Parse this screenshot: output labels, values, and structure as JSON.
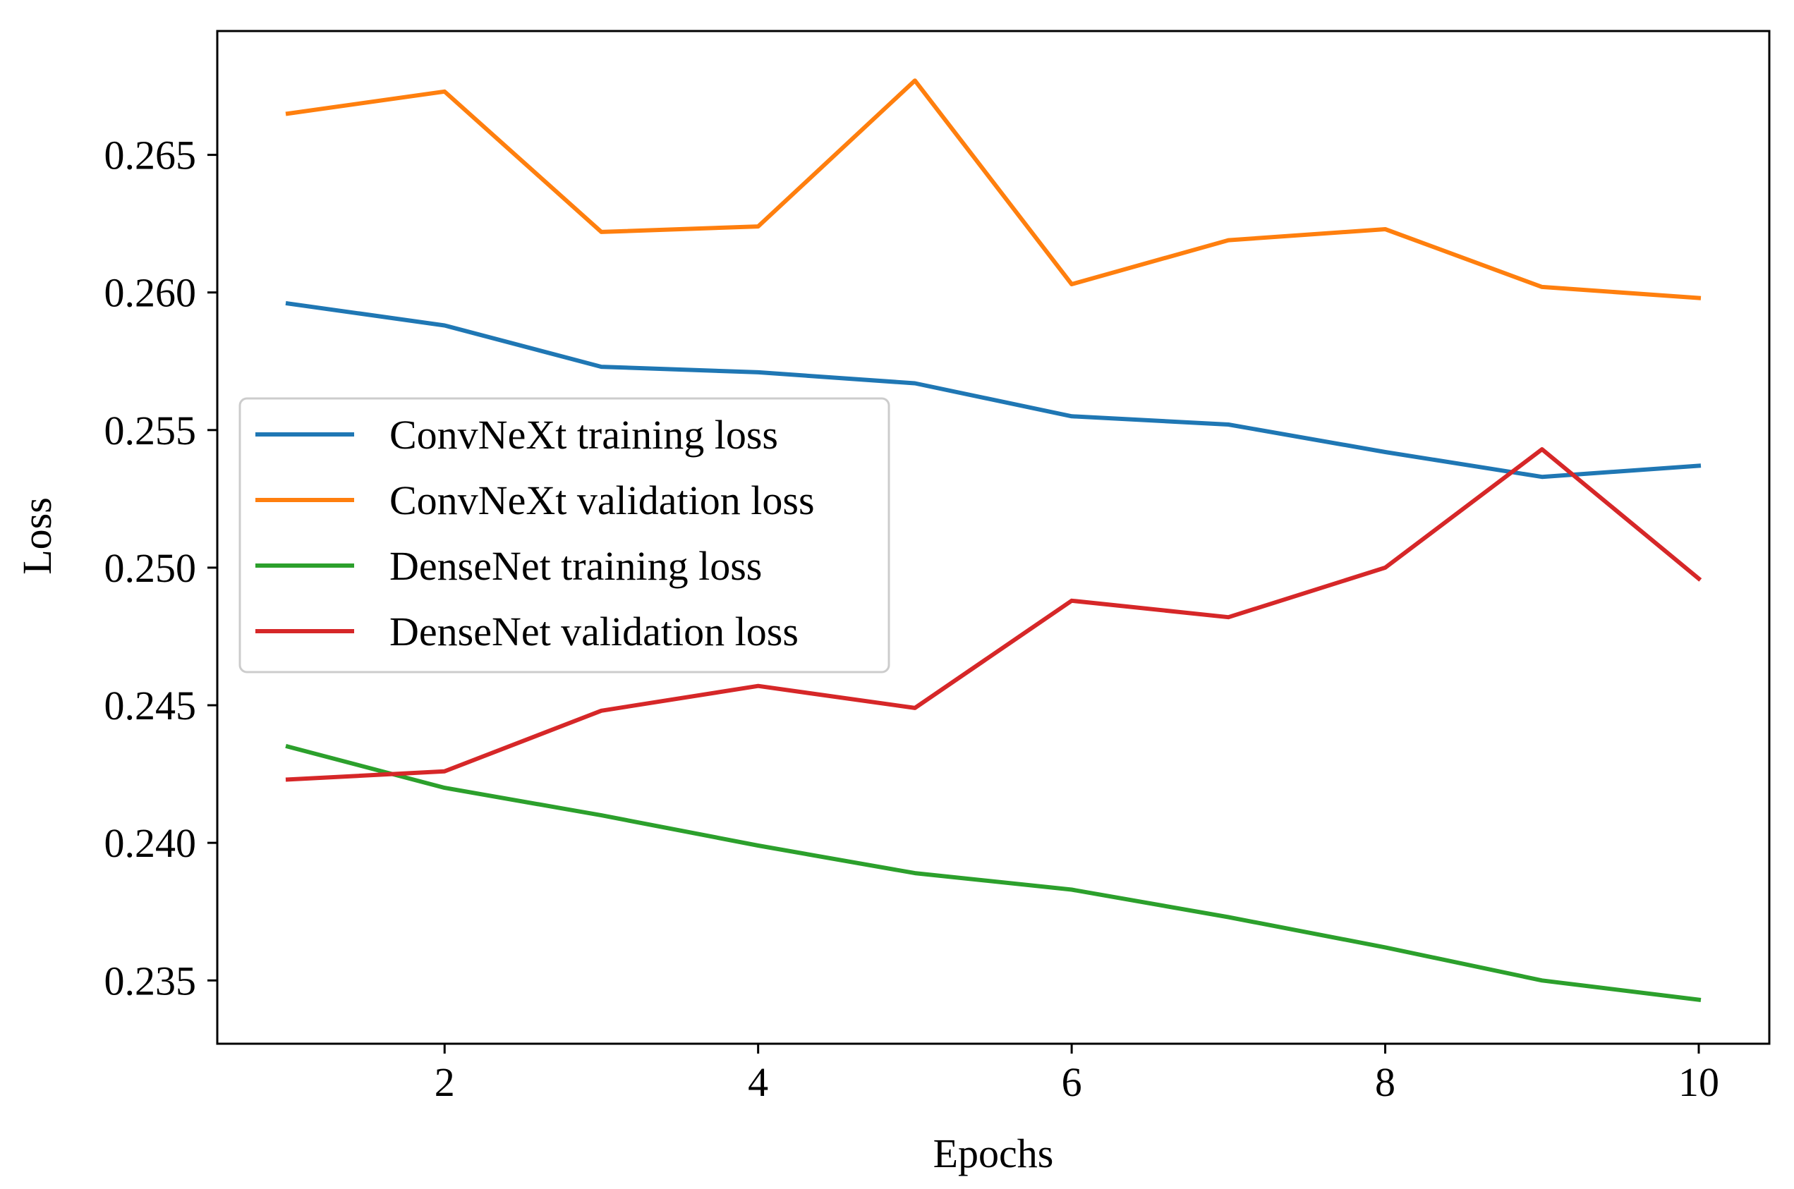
{
  "chart_data": {
    "type": "line",
    "title": "",
    "xlabel": "Epochs",
    "ylabel": "Loss",
    "x": [
      1,
      2,
      3,
      4,
      5,
      6,
      7,
      8,
      9,
      10
    ],
    "xlim": [
      0.55,
      10.45
    ],
    "ylim": [
      0.2327,
      0.2695
    ],
    "xticks": [
      2,
      4,
      6,
      8,
      10
    ],
    "xtick_labels": [
      "2",
      "4",
      "6",
      "8",
      "10"
    ],
    "yticks": [
      0.235,
      0.24,
      0.245,
      0.25,
      0.255,
      0.26,
      0.265
    ],
    "ytick_labels": [
      "0.235",
      "0.240",
      "0.245",
      "0.250",
      "0.255",
      "0.260",
      "0.265"
    ],
    "grid": false,
    "legend_position": "center-left",
    "series": [
      {
        "name": "ConvNeXt training loss",
        "color": "#1f77b4",
        "values": [
          0.2596,
          0.2588,
          0.2573,
          0.2571,
          0.2567,
          0.2555,
          0.2552,
          0.2542,
          0.2533,
          0.2537
        ]
      },
      {
        "name": "ConvNeXt validation loss",
        "color": "#ff7f0e",
        "values": [
          0.2665,
          0.2673,
          0.2622,
          0.2624,
          0.2677,
          0.2603,
          0.2619,
          0.2623,
          0.2602,
          0.2598
        ]
      },
      {
        "name": "DenseNet training loss",
        "color": "#2ca02c",
        "values": [
          0.2435,
          0.242,
          0.241,
          0.2399,
          0.2389,
          0.2383,
          0.2373,
          0.2362,
          0.235,
          0.2343
        ]
      },
      {
        "name": "DenseNet validation loss",
        "color": "#d62728",
        "values": [
          0.2423,
          0.2426,
          0.2448,
          0.2457,
          0.2449,
          0.2488,
          0.2482,
          0.25,
          0.2543,
          0.2496
        ]
      }
    ]
  }
}
